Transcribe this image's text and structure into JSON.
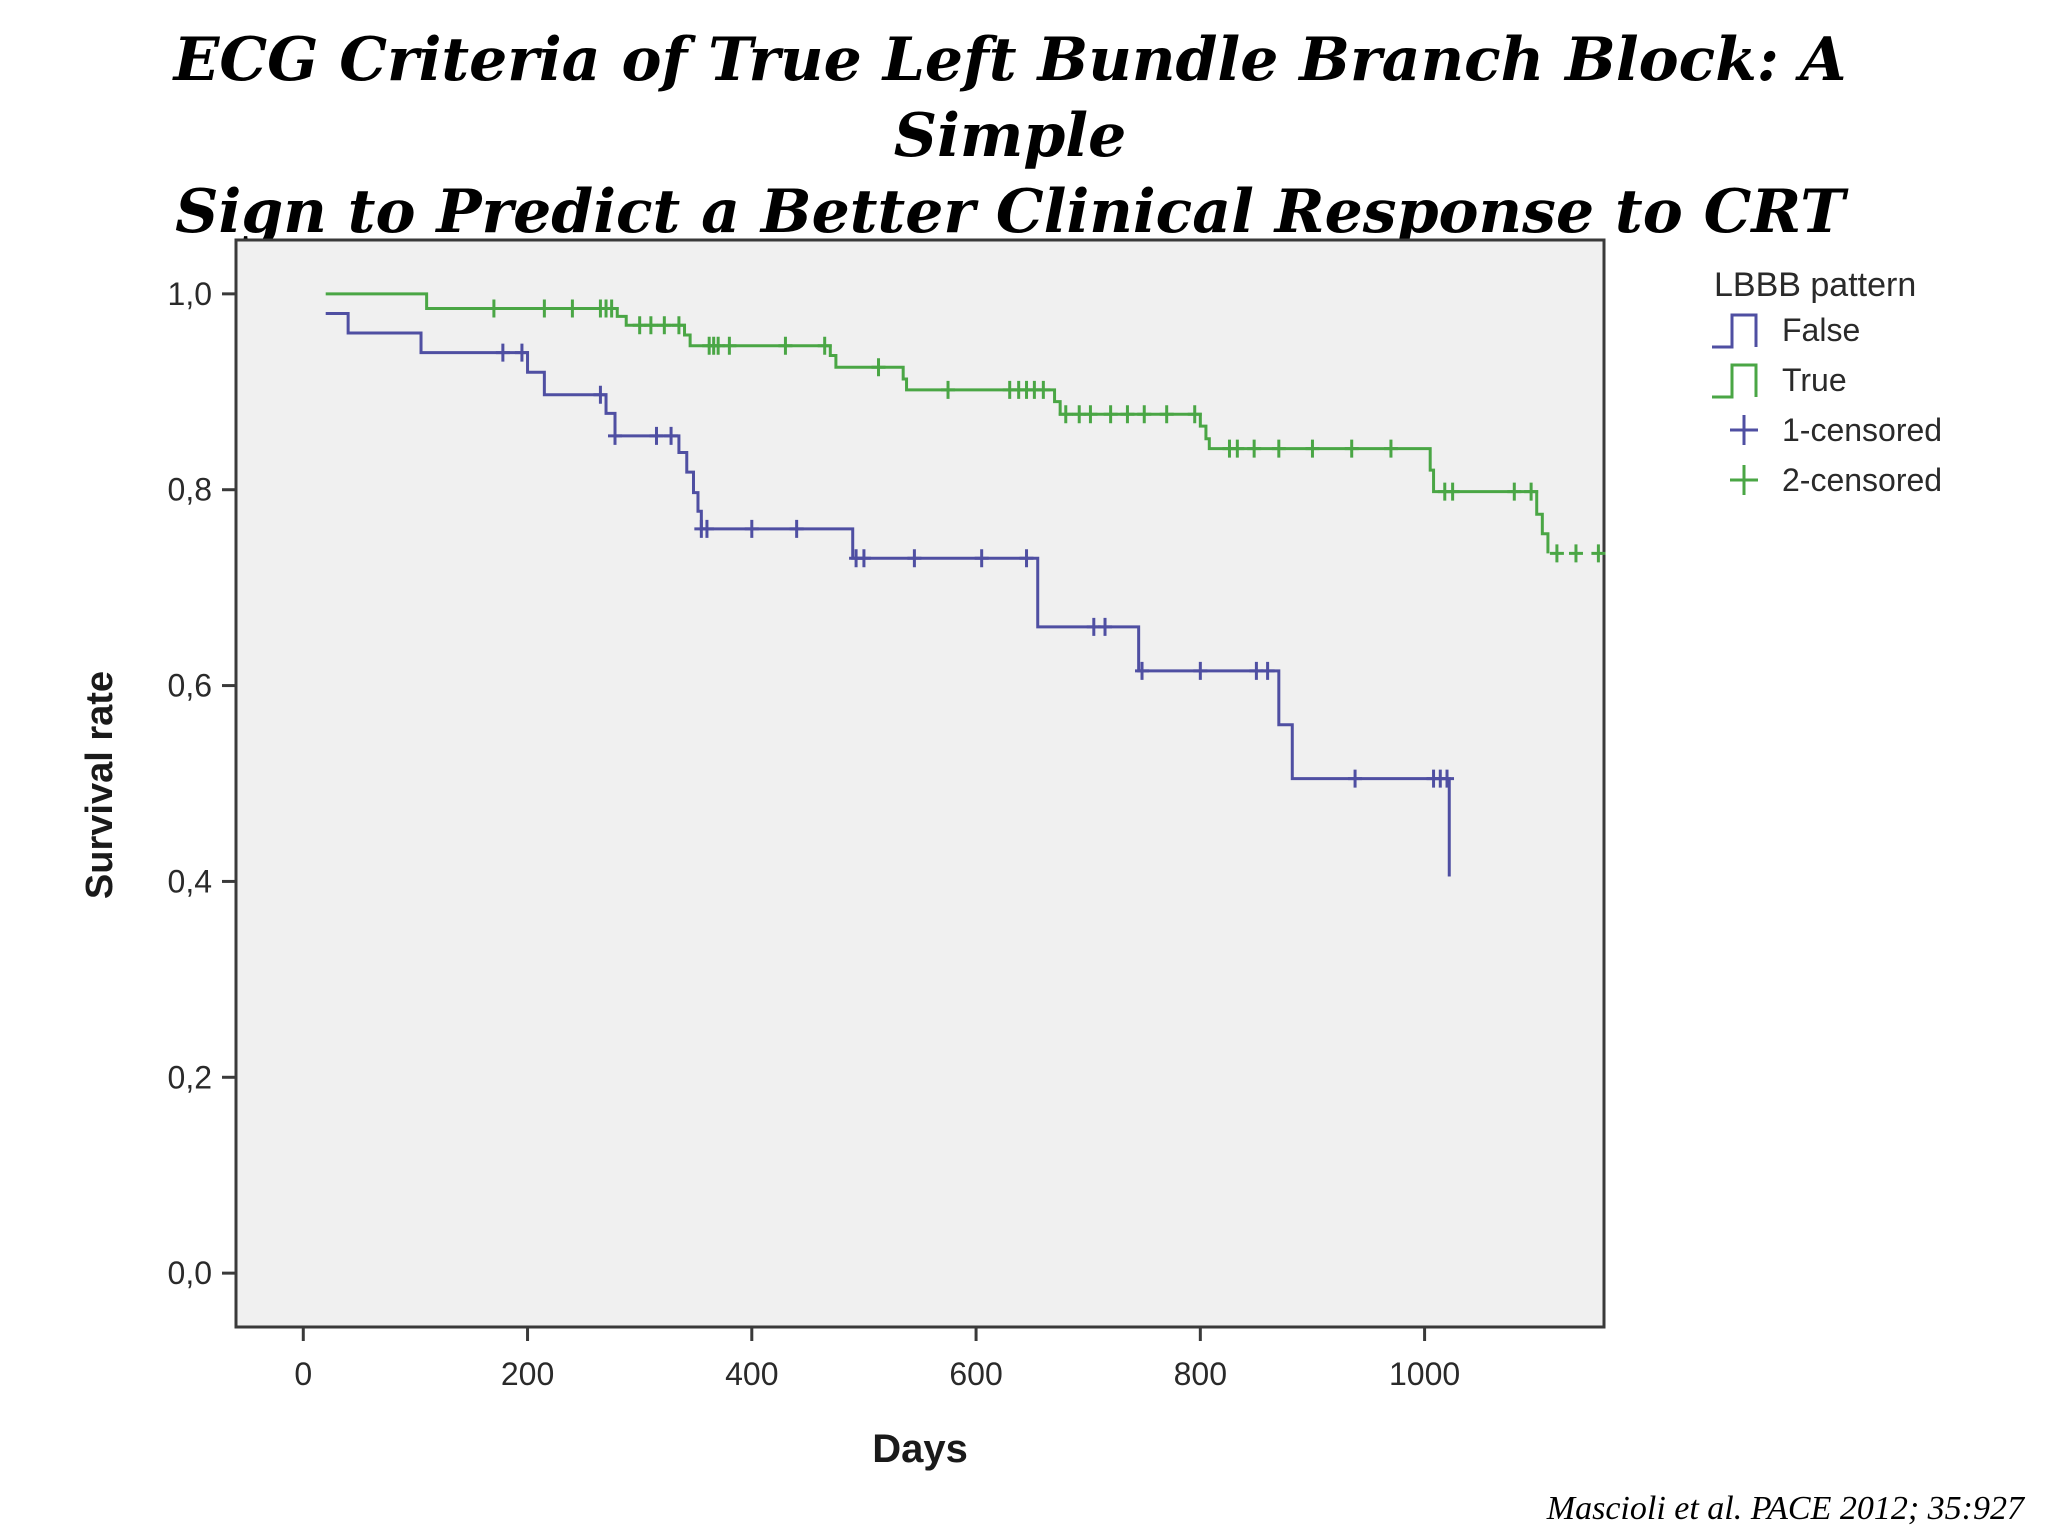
{
  "slide": {
    "title_line1": "ECG Criteria of True Left Bundle Branch Block: A Simple",
    "title_line2": "Sign to Predict a Better Clinical Response to CRT",
    "citation": "Mascioli et al. PACE 2012; 35:927"
  },
  "colors": {
    "false_series": "#4f4fa2",
    "true_series": "#4aa645",
    "plot_background": "#f0f0f0",
    "axis": "#3a3a3a"
  },
  "chart_data": {
    "type": "line",
    "step": true,
    "xlabel": "Days",
    "ylabel": "Survival rate",
    "xlim": [
      -60,
      1160
    ],
    "ylim": [
      -0.055,
      1.055
    ],
    "xticks": [
      0,
      200,
      400,
      600,
      800,
      1000
    ],
    "xtick_labels": [
      "0",
      "200",
      "400",
      "600",
      "800",
      "1000"
    ],
    "yticks": [
      0,
      0.2,
      0.4,
      0.6,
      0.8,
      1.0
    ],
    "ytick_labels": [
      "0,0",
      "0,2",
      "0,4",
      "0,6",
      "0,8",
      "1,0"
    ],
    "grid": false,
    "legend": {
      "title": "LBBB pattern",
      "placement": "right, outside plot",
      "entries": [
        {
          "label": "False",
          "series": "False",
          "kind": "line"
        },
        {
          "label": "True",
          "series": "True",
          "kind": "line"
        },
        {
          "label": "1-censored",
          "series": "False",
          "kind": "censor"
        },
        {
          "label": "2-censored",
          "series": "True",
          "kind": "censor"
        }
      ]
    },
    "series": [
      {
        "name": "False",
        "color": "#4f4fa2",
        "steps": [
          [
            20,
            0.98
          ],
          [
            40,
            0.96
          ],
          [
            105,
            0.94
          ],
          [
            200,
            0.92
          ],
          [
            215,
            0.897
          ],
          [
            270,
            0.878
          ],
          [
            278,
            0.855
          ],
          [
            335,
            0.838
          ],
          [
            342,
            0.818
          ],
          [
            348,
            0.797
          ],
          [
            352,
            0.778
          ],
          [
            355,
            0.76
          ],
          [
            490,
            0.73
          ],
          [
            655,
            0.66
          ],
          [
            745,
            0.615
          ],
          [
            870,
            0.56
          ],
          [
            882,
            0.505
          ],
          [
            1022,
            0.405
          ]
        ],
        "censored": [
          [
            178,
            0.94
          ],
          [
            195,
            0.94
          ],
          [
            265,
            0.897
          ],
          [
            278,
            0.855
          ],
          [
            315,
            0.855
          ],
          [
            328,
            0.855
          ],
          [
            355,
            0.76
          ],
          [
            360,
            0.76
          ],
          [
            400,
            0.76
          ],
          [
            440,
            0.76
          ],
          [
            493,
            0.73
          ],
          [
            500,
            0.73
          ],
          [
            545,
            0.73
          ],
          [
            605,
            0.73
          ],
          [
            645,
            0.73
          ],
          [
            705,
            0.66
          ],
          [
            715,
            0.66
          ],
          [
            748,
            0.615
          ],
          [
            800,
            0.615
          ],
          [
            850,
            0.615
          ],
          [
            860,
            0.615
          ],
          [
            938,
            0.505
          ],
          [
            1008,
            0.505
          ],
          [
            1014,
            0.505
          ],
          [
            1020,
            0.505
          ]
        ]
      },
      {
        "name": "True",
        "color": "#4aa645",
        "steps": [
          [
            20,
            1.0
          ],
          [
            110,
            0.985
          ],
          [
            280,
            0.977
          ],
          [
            288,
            0.968
          ],
          [
            340,
            0.958
          ],
          [
            345,
            0.947
          ],
          [
            470,
            0.937
          ],
          [
            475,
            0.925
          ],
          [
            535,
            0.913
          ],
          [
            538,
            0.902
          ],
          [
            670,
            0.89
          ],
          [
            675,
            0.877
          ],
          [
            800,
            0.865
          ],
          [
            805,
            0.852
          ],
          [
            808,
            0.842
          ],
          [
            1005,
            0.82
          ],
          [
            1008,
            0.798
          ],
          [
            1100,
            0.775
          ],
          [
            1105,
            0.755
          ],
          [
            1110,
            0.735
          ]
        ],
        "censored": [
          [
            170,
            0.985
          ],
          [
            215,
            0.985
          ],
          [
            240,
            0.985
          ],
          [
            265,
            0.985
          ],
          [
            270,
            0.985
          ],
          [
            275,
            0.985
          ],
          [
            300,
            0.968
          ],
          [
            310,
            0.968
          ],
          [
            322,
            0.968
          ],
          [
            335,
            0.968
          ],
          [
            362,
            0.947
          ],
          [
            366,
            0.947
          ],
          [
            370,
            0.947
          ],
          [
            380,
            0.947
          ],
          [
            430,
            0.947
          ],
          [
            465,
            0.947
          ],
          [
            513,
            0.925
          ],
          [
            575,
            0.902
          ],
          [
            630,
            0.902
          ],
          [
            638,
            0.902
          ],
          [
            645,
            0.902
          ],
          [
            652,
            0.902
          ],
          [
            660,
            0.902
          ],
          [
            680,
            0.877
          ],
          [
            692,
            0.877
          ],
          [
            702,
            0.877
          ],
          [
            720,
            0.877
          ],
          [
            735,
            0.877
          ],
          [
            750,
            0.877
          ],
          [
            770,
            0.877
          ],
          [
            795,
            0.877
          ],
          [
            826,
            0.842
          ],
          [
            833,
            0.842
          ],
          [
            848,
            0.842
          ],
          [
            870,
            0.842
          ],
          [
            900,
            0.842
          ],
          [
            935,
            0.842
          ],
          [
            970,
            0.842
          ],
          [
            1018,
            0.798
          ],
          [
            1025,
            0.798
          ],
          [
            1080,
            0.798
          ],
          [
            1095,
            0.798
          ],
          [
            1118,
            0.735
          ],
          [
            1135,
            0.735
          ],
          [
            1155,
            0.735
          ]
        ]
      }
    ]
  }
}
